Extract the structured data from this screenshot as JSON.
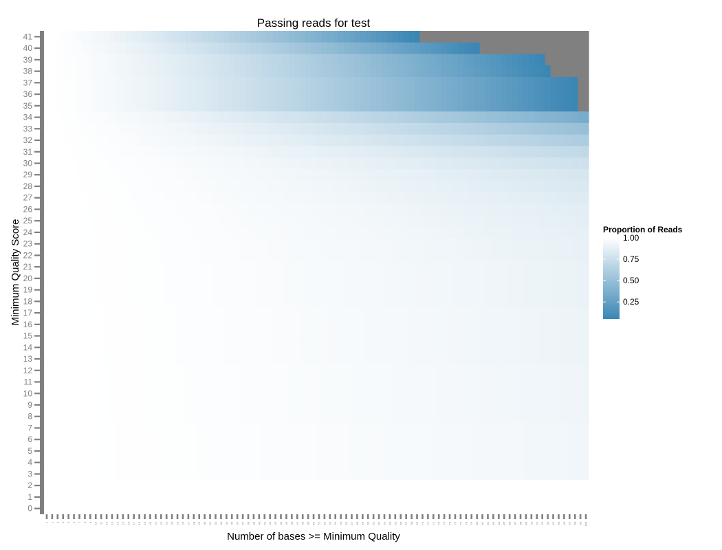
{
  "chart_data": {
    "type": "heatmap",
    "title": "Passing reads for test",
    "xlabel": "Number of bases >= Minimum Quality",
    "ylabel": "Minimum Quality Score",
    "x_range": [
      1,
      100
    ],
    "y_range": [
      0,
      41
    ],
    "missing_color": "#808080",
    "color_scale": {
      "low_color": "#3a86b4",
      "high_color": "#ffffff",
      "domain": [
        0.05,
        1.0
      ]
    },
    "legend": {
      "title": "Proportion of Reads",
      "position": "right",
      "ticks": [
        "1.00",
        "0.75",
        "0.50",
        "0.25"
      ],
      "tick_values": [
        1.0,
        0.75,
        0.5,
        0.25
      ]
    },
    "rows": [
      {
        "q": 41,
        "max_x": 69,
        "min_prop": 0.05
      },
      {
        "q": 40,
        "max_x": 80,
        "min_prop": 0.05
      },
      {
        "q": 39,
        "max_x": 92,
        "min_prop": 0.05
      },
      {
        "q": 38,
        "max_x": 93,
        "min_prop": 0.05
      },
      {
        "q": 37,
        "max_x": 98,
        "min_prop": 0.05
      },
      {
        "q": 36,
        "max_x": 98,
        "min_prop": 0.05
      },
      {
        "q": 35,
        "max_x": 98,
        "min_prop": 0.05
      },
      {
        "q": 34,
        "max_x": 100,
        "min_prop": 0.35
      },
      {
        "q": 33,
        "max_x": 100,
        "min_prop": 0.5
      },
      {
        "q": 32,
        "max_x": 100,
        "min_prop": 0.6
      },
      {
        "q": 31,
        "max_x": 100,
        "min_prop": 0.7
      },
      {
        "q": 30,
        "max_x": 100,
        "min_prop": 0.76
      },
      {
        "q": 29,
        "max_x": 100,
        "min_prop": 0.8
      },
      {
        "q": 28,
        "max_x": 100,
        "min_prop": 0.82
      },
      {
        "q": 27,
        "max_x": 100,
        "min_prop": 0.84
      },
      {
        "q": 26,
        "max_x": 100,
        "min_prop": 0.86
      },
      {
        "q": 25,
        "max_x": 100,
        "min_prop": 0.87
      },
      {
        "q": 24,
        "max_x": 100,
        "min_prop": 0.88
      },
      {
        "q": 23,
        "max_x": 100,
        "min_prop": 0.89
      },
      {
        "q": 22,
        "max_x": 100,
        "min_prop": 0.89
      },
      {
        "q": 21,
        "max_x": 100,
        "min_prop": 0.9
      },
      {
        "q": 20,
        "max_x": 100,
        "min_prop": 0.9
      },
      {
        "q": 19,
        "max_x": 100,
        "min_prop": 0.9
      },
      {
        "q": 18,
        "max_x": 100,
        "min_prop": 0.9
      },
      {
        "q": 17,
        "max_x": 100,
        "min_prop": 0.91
      },
      {
        "q": 16,
        "max_x": 100,
        "min_prop": 0.91
      },
      {
        "q": 15,
        "max_x": 100,
        "min_prop": 0.91
      },
      {
        "q": 14,
        "max_x": 100,
        "min_prop": 0.91
      },
      {
        "q": 13,
        "max_x": 100,
        "min_prop": 0.91
      },
      {
        "q": 12,
        "max_x": 100,
        "min_prop": 0.92
      },
      {
        "q": 11,
        "max_x": 100,
        "min_prop": 0.92
      },
      {
        "q": 10,
        "max_x": 100,
        "min_prop": 0.92
      },
      {
        "q": 9,
        "max_x": 100,
        "min_prop": 0.92
      },
      {
        "q": 8,
        "max_x": 100,
        "min_prop": 0.92
      },
      {
        "q": 7,
        "max_x": 100,
        "min_prop": 0.93
      },
      {
        "q": 6,
        "max_x": 100,
        "min_prop": 0.93
      },
      {
        "q": 5,
        "max_x": 100,
        "min_prop": 0.93
      },
      {
        "q": 4,
        "max_x": 100,
        "min_prop": 0.93
      },
      {
        "q": 3,
        "max_x": 100,
        "min_prop": 0.93
      },
      {
        "q": 2,
        "max_x": 100,
        "min_prop": 1.0
      },
      {
        "q": 1,
        "max_x": 100,
        "min_prop": 1.0
      },
      {
        "q": 0,
        "max_x": 100,
        "min_prop": 1.0
      }
    ]
  }
}
